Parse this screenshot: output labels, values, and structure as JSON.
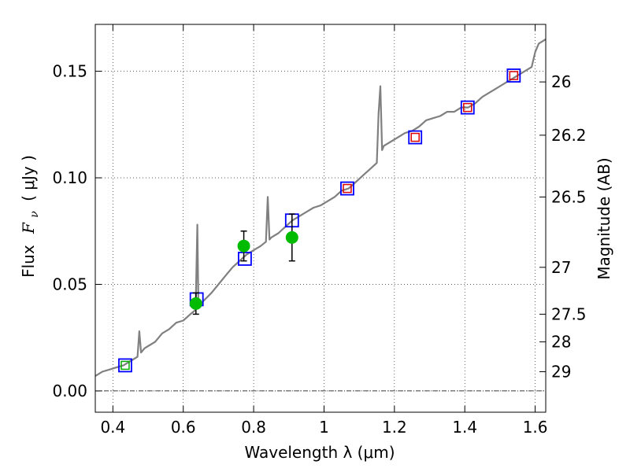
{
  "chart_data": {
    "type": "line",
    "title": "",
    "xlabel": "Wavelength  λ (μm)",
    "ylabel_prefix": "Flux",
    "ylabel_symbol": "F",
    "ylabel_subscript": "ν",
    "ylabel_units": "( μJy )",
    "y2label": "Magnitude (AB)",
    "xlim": [
      0.35,
      1.63
    ],
    "ylim": [
      -0.01,
      0.172
    ],
    "grid": true,
    "x_ticks": [
      0.4,
      0.6,
      0.8,
      1.0,
      1.2,
      1.4,
      1.6
    ],
    "x_tick_labels": [
      "0.4",
      "0.6",
      "0.8",
      "1",
      "1.2",
      "1.4",
      "1.6"
    ],
    "y_ticks": [
      0.0,
      0.05,
      0.1,
      0.15
    ],
    "y_tick_labels": [
      "0.00",
      "0.05",
      "0.10",
      "0.15"
    ],
    "y2_ticks": [
      {
        "label": "26",
        "flux": 0.145
      },
      {
        "label": "26.2",
        "flux": 0.12
      },
      {
        "label": "26.5",
        "flux": 0.091
      },
      {
        "label": "27",
        "flux": 0.058
      },
      {
        "label": "27.5",
        "flux": 0.036
      },
      {
        "label": "28",
        "flux": 0.023
      },
      {
        "label": "29",
        "flux": 0.009
      }
    ],
    "zero_line": 0.0,
    "spectrum": {
      "name": "model spectrum",
      "color": "#808080",
      "x": [
        0.35,
        0.37,
        0.39,
        0.41,
        0.43,
        0.45,
        0.47,
        0.475,
        0.48,
        0.49,
        0.5,
        0.52,
        0.54,
        0.56,
        0.58,
        0.6,
        0.62,
        0.635,
        0.64,
        0.643,
        0.646,
        0.65,
        0.68,
        0.7,
        0.72,
        0.74,
        0.76,
        0.78,
        0.8,
        0.82,
        0.835,
        0.84,
        0.845,
        0.85,
        0.87,
        0.89,
        0.91,
        0.93,
        0.95,
        0.97,
        0.99,
        1.01,
        1.03,
        1.05,
        1.07,
        1.09,
        1.11,
        1.13,
        1.15,
        1.155,
        1.16,
        1.165,
        1.17,
        1.19,
        1.21,
        1.23,
        1.25,
        1.27,
        1.29,
        1.31,
        1.33,
        1.35,
        1.37,
        1.39,
        1.41,
        1.43,
        1.45,
        1.47,
        1.49,
        1.51,
        1.53,
        1.55,
        1.57,
        1.59,
        1.6,
        1.61,
        1.63
      ],
      "y": [
        0.007,
        0.009,
        0.01,
        0.011,
        0.012,
        0.014,
        0.016,
        0.028,
        0.018,
        0.02,
        0.021,
        0.023,
        0.027,
        0.029,
        0.032,
        0.033,
        0.036,
        0.038,
        0.078,
        0.041,
        0.04,
        0.041,
        0.046,
        0.05,
        0.054,
        0.058,
        0.061,
        0.064,
        0.066,
        0.068,
        0.07,
        0.091,
        0.071,
        0.072,
        0.074,
        0.077,
        0.08,
        0.082,
        0.084,
        0.086,
        0.087,
        0.089,
        0.091,
        0.094,
        0.095,
        0.098,
        0.101,
        0.104,
        0.107,
        0.13,
        0.143,
        0.113,
        0.115,
        0.117,
        0.119,
        0.121,
        0.122,
        0.124,
        0.127,
        0.128,
        0.129,
        0.131,
        0.131,
        0.133,
        0.133,
        0.135,
        0.138,
        0.14,
        0.142,
        0.144,
        0.146,
        0.148,
        0.15,
        0.152,
        0.159,
        0.163,
        0.165
      ]
    },
    "series": [
      {
        "name": "model photometry (blue squares)",
        "marker": "square",
        "color": "#0000ff",
        "x": [
          0.435,
          0.638,
          0.775,
          0.909,
          1.066,
          1.259,
          1.408,
          1.539
        ],
        "y": [
          0.012,
          0.043,
          0.062,
          0.08,
          0.095,
          0.119,
          0.133,
          0.148
        ]
      },
      {
        "name": "predicted (red squares)",
        "marker": "square",
        "color": "#dd0000",
        "x": [
          1.066,
          1.259,
          1.408,
          1.539
        ],
        "y": [
          0.095,
          0.119,
          0.133,
          0.148
        ]
      },
      {
        "name": "predicted (green squares)",
        "marker": "square",
        "color": "#00aa00",
        "x": [
          0.435
        ],
        "y": [
          0.012
        ]
      },
      {
        "name": "observed (green circles)",
        "marker": "circle",
        "color": "#00bb00",
        "x": [
          0.636,
          0.772,
          0.909
        ],
        "y": [
          0.041,
          0.068,
          0.072
        ],
        "yerr_low": [
          0.036,
          0.061,
          0.061
        ],
        "yerr_high": [
          0.046,
          0.075,
          0.083
        ]
      }
    ]
  }
}
